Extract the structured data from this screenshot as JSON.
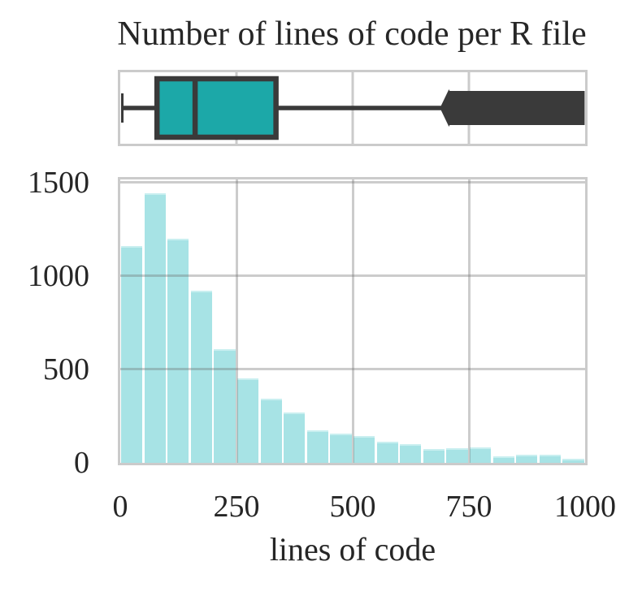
{
  "figure": {
    "title": "Number of lines of code per R file",
    "background": "#ffffff",
    "text_color": "#262626",
    "grid_color": "#cbcbcb",
    "dark_line": "#3a3a3a",
    "box_fill": "#1ca8a8",
    "hist_fill": "#a7e3e5"
  },
  "chart_data": [
    {
      "type": "box",
      "orientation": "horizontal",
      "variable": "lines of code",
      "x_range": [
        0,
        1000
      ],
      "xticks": [
        250,
        500,
        750
      ],
      "stats": {
        "whisker_low": 2,
        "q1": 79,
        "median": 161,
        "q3": 335,
        "whisker_high": 700
      },
      "outlier_cluster": {
        "from": 707,
        "to": 999
      },
      "box_fill": "#1ca8a8",
      "line_color": "#3a3a3a",
      "grid": true,
      "legend_position": "none"
    },
    {
      "type": "histogram",
      "title": "Number of lines of code per R file",
      "xlabel": "lines of code",
      "ylabel": "",
      "bin_edges": [
        0,
        50,
        100,
        150,
        200,
        250,
        300,
        350,
        400,
        450,
        500,
        550,
        600,
        650,
        700,
        750,
        800,
        850,
        900,
        950,
        1000
      ],
      "values": [
        1160,
        1445,
        1200,
        920,
        610,
        450,
        345,
        268,
        172,
        157,
        145,
        114,
        100,
        74,
        79,
        81,
        36,
        42,
        45,
        22
      ],
      "xticks": [
        0,
        250,
        500,
        750,
        1000
      ],
      "yticks": [
        0,
        500,
        1000,
        1500
      ],
      "xlim": [
        0,
        1000
      ],
      "ylim": [
        0,
        1517
      ],
      "bar_fill": "#a7e3e5",
      "grid": true,
      "legend_position": "none"
    }
  ]
}
